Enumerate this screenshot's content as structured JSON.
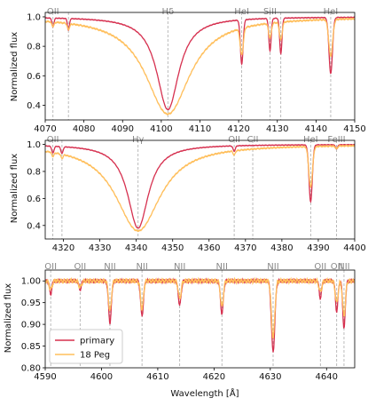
{
  "figure": {
    "ylabel": "Normalized flux",
    "xlabel": "Wavelength [Å]",
    "legend": {
      "location": "lower-left",
      "entries": [
        "primary",
        "18 Peg"
      ]
    }
  },
  "colors": {
    "primary": "#d6304f",
    "secondary": "#ffbf5c",
    "marker": "#aaaaaa",
    "label": "#888888"
  },
  "chart_data": [
    {
      "type": "line",
      "xlim": [
        4070,
        4150
      ],
      "ylim": [
        0.3,
        1.03
      ],
      "xticks": [
        4070,
        4080,
        4090,
        4100,
        4110,
        4120,
        4130,
        4140,
        4150
      ],
      "yticks": [
        0.4,
        0.6,
        0.8,
        1.0
      ],
      "ytick_labels": [
        "0.4",
        "0.6",
        "0.8",
        "1.0"
      ],
      "line_markers": [
        {
          "x": 4072,
          "label": "OII"
        },
        {
          "x": 4076,
          "label": ""
        },
        {
          "x": 4101.7,
          "label": "Hδ"
        },
        {
          "x": 4120.8,
          "label": "HeI"
        },
        {
          "x": 4128.1,
          "label": "SiII"
        },
        {
          "x": 4130.9,
          "label": ""
        },
        {
          "x": 4143.8,
          "label": "HeI"
        }
      ],
      "series": [
        {
          "name": "primary",
          "lines": [
            {
              "c": 4101.7,
              "d": 0.63,
              "w": 3.5,
              "p": "L"
            },
            {
              "c": 4072,
              "d": 0.06,
              "w": 0.25,
              "p": "G"
            },
            {
              "c": 4076,
              "d": 0.08,
              "w": 0.25,
              "p": "G"
            },
            {
              "c": 4120.8,
              "d": 0.3,
              "w": 0.35,
              "p": "G"
            },
            {
              "c": 4128.1,
              "d": 0.22,
              "w": 0.3,
              "p": "G"
            },
            {
              "c": 4130.9,
              "d": 0.24,
              "w": 0.3,
              "p": "G"
            },
            {
              "c": 4143.8,
              "d": 0.38,
              "w": 0.45,
              "p": "G"
            }
          ]
        },
        {
          "name": "18 Peg",
          "lines": [
            {
              "c": 4101.7,
              "d": 0.66,
              "w": 7.0,
              "p": "L"
            },
            {
              "c": 4072,
              "d": 0.03,
              "w": 0.3,
              "p": "G"
            },
            {
              "c": 4076,
              "d": 0.04,
              "w": 0.3,
              "p": "G"
            },
            {
              "c": 4120.8,
              "d": 0.18,
              "w": 0.4,
              "p": "G"
            },
            {
              "c": 4128.1,
              "d": 0.1,
              "w": 0.35,
              "p": "G"
            },
            {
              "c": 4130.9,
              "d": 0.12,
              "w": 0.35,
              "p": "G"
            },
            {
              "c": 4143.8,
              "d": 0.25,
              "w": 0.5,
              "p": "G"
            }
          ]
        }
      ]
    },
    {
      "type": "line",
      "xlim": [
        4315,
        4400
      ],
      "ylim": [
        0.3,
        1.03
      ],
      "xticks": [
        4320,
        4330,
        4340,
        4350,
        4360,
        4370,
        4380,
        4390,
        4400
      ],
      "yticks": [
        0.4,
        0.6,
        0.8,
        1.0
      ],
      "ytick_labels": [
        "0.4",
        "0.6",
        "0.8",
        "1.0"
      ],
      "line_markers": [
        {
          "x": 4317.1,
          "label": "OII"
        },
        {
          "x": 4319.6,
          "label": ""
        },
        {
          "x": 4340.5,
          "label": "Hγ"
        },
        {
          "x": 4366.9,
          "label": "OII"
        },
        {
          "x": 4372.0,
          "label": "CII"
        },
        {
          "x": 4387.9,
          "label": "HeI"
        },
        {
          "x": 4395.0,
          "label": "FeIII"
        }
      ],
      "series": [
        {
          "name": "primary",
          "lines": [
            {
              "c": 4340.5,
              "d": 0.62,
              "w": 3.5,
              "p": "L"
            },
            {
              "c": 4317.1,
              "d": 0.05,
              "w": 0.3,
              "p": "G"
            },
            {
              "c": 4319.6,
              "d": 0.05,
              "w": 0.3,
              "p": "G"
            },
            {
              "c": 4366.9,
              "d": 0.04,
              "w": 0.3,
              "p": "G"
            },
            {
              "c": 4387.9,
              "d": 0.42,
              "w": 0.45,
              "p": "G"
            },
            {
              "c": 4395.0,
              "d": 0.03,
              "w": 0.3,
              "p": "G"
            }
          ]
        },
        {
          "name": "18 Peg",
          "lines": [
            {
              "c": 4340.5,
              "d": 0.64,
              "w": 7.5,
              "p": "L"
            },
            {
              "c": 4317.1,
              "d": 0.03,
              "w": 0.3,
              "p": "G"
            },
            {
              "c": 4319.6,
              "d": 0.03,
              "w": 0.3,
              "p": "G"
            },
            {
              "c": 4366.9,
              "d": 0.03,
              "w": 0.3,
              "p": "G"
            },
            {
              "c": 4387.9,
              "d": 0.3,
              "w": 0.5,
              "p": "G"
            },
            {
              "c": 4395.0,
              "d": 0.02,
              "w": 0.3,
              "p": "G"
            }
          ]
        }
      ]
    },
    {
      "type": "line",
      "xlim": [
        4590,
        4645
      ],
      "ylim": [
        0.8,
        1.025
      ],
      "xticks": [
        4590,
        4600,
        4610,
        4620,
        4630,
        4640
      ],
      "yticks": [
        0.8,
        0.85,
        0.9,
        0.95,
        1.0
      ],
      "ytick_labels": [
        "0.80",
        "0.85",
        "0.90",
        "0.95",
        "1.00"
      ],
      "line_markers": [
        {
          "x": 4590.97,
          "label": "OII"
        },
        {
          "x": 4596.2,
          "label": "OII"
        },
        {
          "x": 4601.5,
          "label": "NII"
        },
        {
          "x": 4607.2,
          "label": "NII"
        },
        {
          "x": 4613.9,
          "label": "NII"
        },
        {
          "x": 4621.4,
          "label": "NII"
        },
        {
          "x": 4630.5,
          "label": "NII"
        },
        {
          "x": 4638.9,
          "label": "OII"
        },
        {
          "x": 4641.8,
          "label": "OII"
        },
        {
          "x": 4643.1,
          "label": "NII"
        }
      ],
      "series": [
        {
          "name": "primary",
          "lines": [
            {
              "c": 4590.97,
              "d": 0.03,
              "w": 0.2,
              "p": "G"
            },
            {
              "c": 4596.2,
              "d": 0.02,
              "w": 0.2,
              "p": "G"
            },
            {
              "c": 4601.5,
              "d": 0.095,
              "w": 0.25,
              "p": "G"
            },
            {
              "c": 4607.2,
              "d": 0.08,
              "w": 0.25,
              "p": "G"
            },
            {
              "c": 4613.9,
              "d": 0.055,
              "w": 0.25,
              "p": "G"
            },
            {
              "c": 4621.4,
              "d": 0.075,
              "w": 0.25,
              "p": "G"
            },
            {
              "c": 4630.5,
              "d": 0.163,
              "w": 0.3,
              "p": "G"
            },
            {
              "c": 4638.9,
              "d": 0.04,
              "w": 0.2,
              "p": "G"
            },
            {
              "c": 4641.8,
              "d": 0.07,
              "w": 0.22,
              "p": "G"
            },
            {
              "c": 4643.1,
              "d": 0.11,
              "w": 0.22,
              "p": "G"
            }
          ]
        },
        {
          "name": "18 Peg",
          "lines": [
            {
              "c": 4590.97,
              "d": 0.02,
              "w": 0.25,
              "p": "G"
            },
            {
              "c": 4596.2,
              "d": 0.015,
              "w": 0.25,
              "p": "G"
            },
            {
              "c": 4601.5,
              "d": 0.07,
              "w": 0.25,
              "p": "G"
            },
            {
              "c": 4607.2,
              "d": 0.065,
              "w": 0.25,
              "p": "G"
            },
            {
              "c": 4613.9,
              "d": 0.04,
              "w": 0.25,
              "p": "G"
            },
            {
              "c": 4621.4,
              "d": 0.06,
              "w": 0.25,
              "p": "G"
            },
            {
              "c": 4630.5,
              "d": 0.13,
              "w": 0.3,
              "p": "G"
            },
            {
              "c": 4638.9,
              "d": 0.025,
              "w": 0.25,
              "p": "G"
            },
            {
              "c": 4641.8,
              "d": 0.05,
              "w": 0.25,
              "p": "G"
            },
            {
              "c": 4643.1,
              "d": 0.08,
              "w": 0.25,
              "p": "G"
            }
          ]
        }
      ]
    }
  ]
}
